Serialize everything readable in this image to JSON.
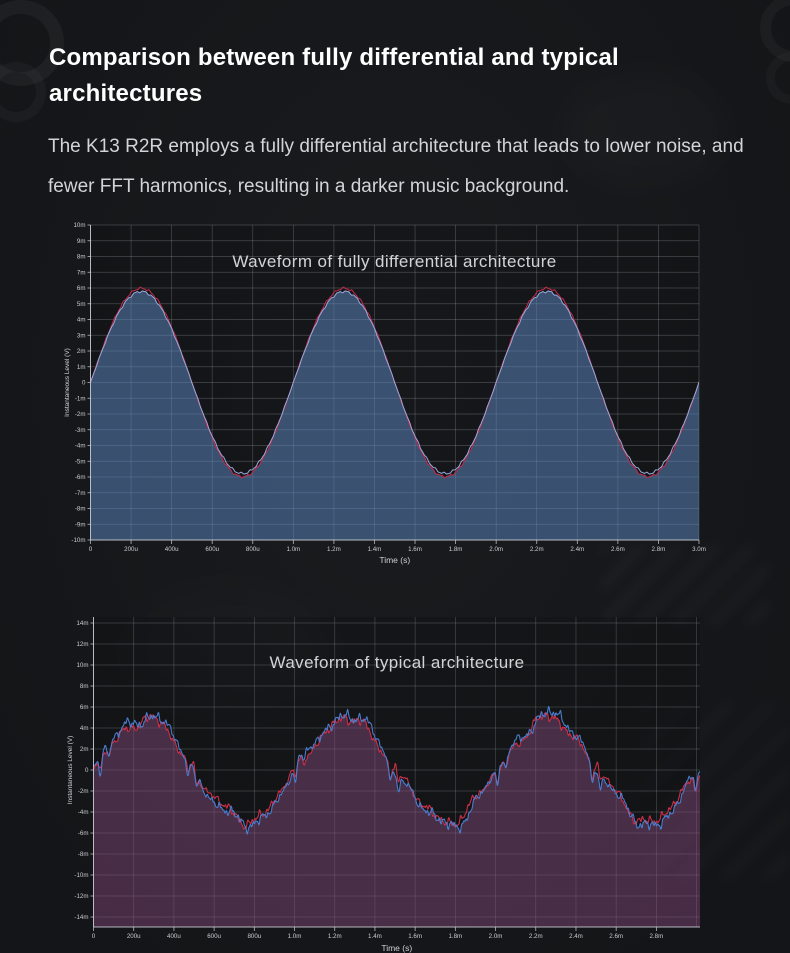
{
  "page": {
    "background_color": "#16181b",
    "heading": "Comparison between fully differential and typical architectures",
    "intro": "The K13 R2R employs a fully differential architecture that leads to lower noise, and fewer FFT harmonics, resulting in a darker music background."
  },
  "chart_data": [
    {
      "type": "line",
      "title": "Waveform of fully differential architecture",
      "xlabel": "Time (s)",
      "ylabel": "Instantaneous Level (V)",
      "x_tick_labels": [
        "0",
        "200u",
        "400u",
        "600u",
        "800u",
        "1.0m",
        "1.2m",
        "1.4m",
        "1.6m",
        "1.8m",
        "2.0m",
        "2.2m",
        "2.4m",
        "2.6m",
        "2.8m",
        "3.0m"
      ],
      "x_tick_values_ms": [
        0,
        0.2,
        0.4,
        0.6,
        0.8,
        1.0,
        1.2,
        1.4,
        1.6,
        1.8,
        2.0,
        2.2,
        2.4,
        2.6,
        2.8,
        3.0
      ],
      "y_tick_labels": [
        "10m",
        "9m",
        "8m",
        "7m",
        "6m",
        "5m",
        "4m",
        "3m",
        "2m",
        "1m",
        "0",
        "-1m",
        "-2m",
        "-3m",
        "-4m",
        "-5m",
        "-6m",
        "-7m",
        "-8m",
        "-9m",
        "-10m"
      ],
      "y_tick_values_mv": [
        10,
        9,
        8,
        7,
        6,
        5,
        4,
        3,
        2,
        1,
        0,
        -1,
        -2,
        -3,
        -4,
        -5,
        -6,
        -7,
        -8,
        -9,
        -10
      ],
      "xlim_ms": [
        0,
        3.0
      ],
      "ylim_mv": [
        -10,
        10
      ],
      "x_max_ms": 3.0,
      "extra_grid_ms": [],
      "grid": true,
      "legend": "none",
      "grid_color": "rgba(190,196,204,0.30)",
      "axis_color": "rgba(206,210,216,0.85)",
      "tick_text_color": "#c9ccd1",
      "fill_color": "rgba(96,140,200,0.5)",
      "signal": {
        "shape": "sine",
        "amplitude_mv": 5.78,
        "period_ms": 1.0,
        "phase_ms": 0,
        "samples": 480,
        "noise": {
          "slow": [],
          "fast": [
            [
              0.05,
              23,
              1.0
            ],
            [
              0.03,
              47,
              2.0
            ]
          ]
        },
        "glitches": null,
        "traces": [
          {
            "name": "channel-red",
            "color": "#c62b4a",
            "scale": 1.035,
            "width": 1.0,
            "noise_gain": 1.0,
            "phase_shift": 0.9,
            "glitch_gain": 0,
            "rebound": false
          },
          {
            "name": "channel-blue",
            "color": "#97aade",
            "scale": 1.0,
            "width": 1.0,
            "noise_gain": 1.0,
            "phase_shift": 0.0,
            "glitch_gain": 0,
            "rebound": false
          }
        ]
      }
    },
    {
      "type": "line",
      "title": "Waveform of typical architecture",
      "xlabel": "Time (s)",
      "ylabel": "Instantaneous Level (V)",
      "x_tick_labels": [
        "0",
        "200u",
        "400u",
        "600u",
        "800u",
        "1.0m",
        "1.2m",
        "1.4m",
        "1.6m",
        "1.8m",
        "2.0m",
        "2.2m",
        "2.4m",
        "2.6m",
        "2.8m"
      ],
      "x_tick_values_ms": [
        0,
        0.2,
        0.4,
        0.6,
        0.8,
        1.0,
        1.2,
        1.4,
        1.6,
        1.8,
        2.0,
        2.2,
        2.4,
        2.6,
        2.8
      ],
      "y_tick_labels": [
        "14m",
        "12m",
        "10m",
        "8m",
        "6m",
        "4m",
        "2m",
        "0",
        "-2m",
        "-4m",
        "-6m",
        "-8m",
        "-10m",
        "-12m",
        "-14m"
      ],
      "y_tick_values_mv": [
        14,
        12,
        10,
        8,
        6,
        4,
        2,
        0,
        -2,
        -4,
        -6,
        -8,
        -10,
        -12,
        -14
      ],
      "xlim_ms": [
        0,
        3.0
      ],
      "ylim_mv": [
        -14,
        14
      ],
      "x_max_ms": 3.017,
      "extra_grid_ms": [
        3.0
      ],
      "grid": true,
      "legend": "none",
      "grid_color": "rgba(190,196,204,0.28)",
      "axis_color": "rgba(206,210,216,0.85)",
      "tick_text_color": "#c9ccd1",
      "fill_color": "rgba(140,78,130,0.45)",
      "signal": {
        "shape": "sine-noisy",
        "amplitude_mv": 4.9,
        "period_ms": 1.005,
        "phase_ms": 0,
        "samples": 1005,
        "noise": {
          "slow": [
            [
              0.38,
              3.1,
              0.7
            ],
            [
              0.27,
              5.7,
              2.3
            ],
            [
              0.2,
              9.3,
              4.1
            ]
          ],
          "fast": [
            [
              0.22,
              19,
              1.3
            ],
            [
              0.16,
              33,
              3.7
            ],
            [
              0.12,
              53,
              0.9
            ],
            [
              0.1,
              83,
              2.2
            ]
          ]
        },
        "glitches": {
          "ascending_ms": [
            0.035,
            1.005,
            2.01,
            2.995
          ],
          "descending_ms": [
            0.47,
            1.475,
            2.48
          ],
          "depth_mv": 1.5,
          "width_ms": 0.009,
          "echo_gap_ms": 0.042
        },
        "traces": [
          {
            "name": "channel-red",
            "color": "#cc2f47",
            "scale": 0.97,
            "width": 1.1,
            "noise_gain": 0.9,
            "phase_shift": 0.8,
            "glitch_gain": 0.8,
            "rebound": true
          },
          {
            "name": "channel-blue",
            "color": "#4b7cce",
            "scale": 1.04,
            "width": 1.1,
            "noise_gain": 1.0,
            "phase_shift": 0.0,
            "glitch_gain": 1.15,
            "rebound": false
          }
        ]
      }
    }
  ]
}
